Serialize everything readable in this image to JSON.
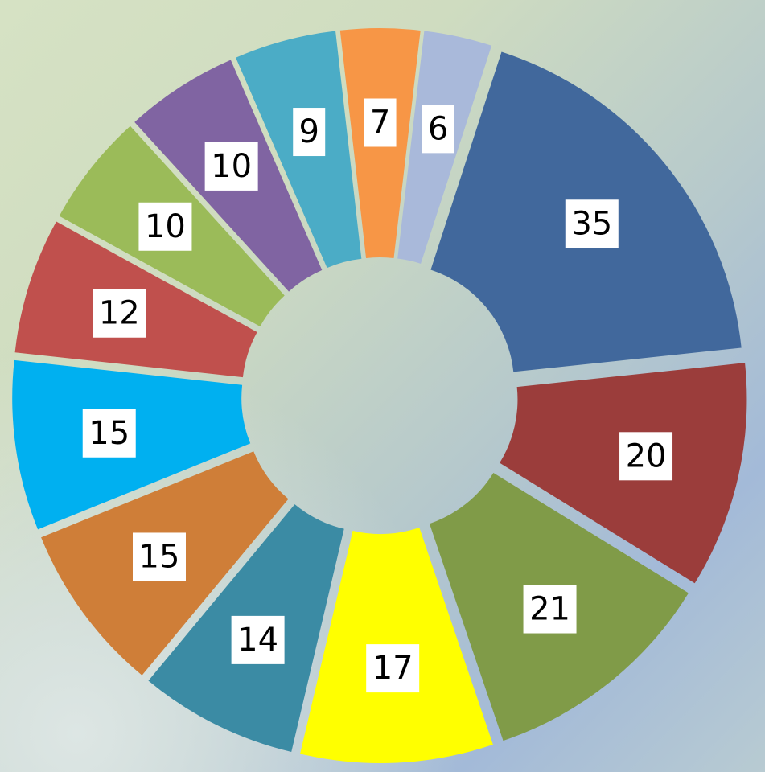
{
  "chart_data": {
    "type": "pie",
    "values": [
      35,
      20,
      21,
      17,
      14,
      15,
      15,
      12,
      10,
      10,
      9,
      7,
      6
    ],
    "colors": [
      "#41689c",
      "#9b3d3b",
      "#809b48",
      "#ffff00",
      "#3b8ba4",
      "#cf7e38",
      "#00b0f0",
      "#c0504d",
      "#9bbb59",
      "#8064a2",
      "#4bacc6",
      "#f79646",
      "#a9b9da"
    ],
    "donut": true,
    "exploded": true
  }
}
